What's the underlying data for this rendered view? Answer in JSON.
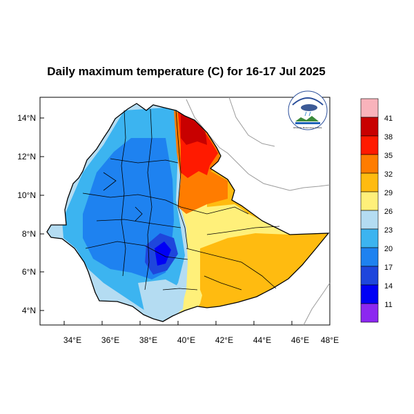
{
  "title": "Daily maximum temperature (C) for 16-17 Jul 2025",
  "x_ticks": [
    "34°E",
    "36°E",
    "38°E",
    "40°E",
    "42°E",
    "44°E",
    "46°E",
    "48°E"
  ],
  "y_ticks": [
    "14°N",
    "12°N",
    "10°N",
    "8°N",
    "6°N",
    "4°N"
  ],
  "colorbar": {
    "labels": [
      "41",
      "38",
      "35",
      "32",
      "29",
      "26",
      "23",
      "20",
      "17",
      "14",
      "11"
    ],
    "colors": [
      "#f9b3bb",
      "#c80000",
      "#ff1a00",
      "#ff7c00",
      "#ffbb10",
      "#fff07a",
      "#b4dcf2",
      "#3cb4f0",
      "#1e82f0",
      "#1e46dc",
      "#0000f5",
      "#8c28f0"
    ]
  },
  "logo": {
    "name": "ethiopian-meteorology-institute-logo",
    "text": "Ethiopian Meteorology Institute"
  },
  "region_colors": {
    "blue_core": "#1e82f0",
    "blue_mid": "#3cb4f0",
    "light_blue": "#b4dcf2",
    "yellow": "#fff07a",
    "orange": "#ffbb10",
    "dark_orange": "#ff7c00",
    "red": "#ff1a00",
    "dark_red": "#c80000",
    "deep_blue": "#0000f5"
  }
}
